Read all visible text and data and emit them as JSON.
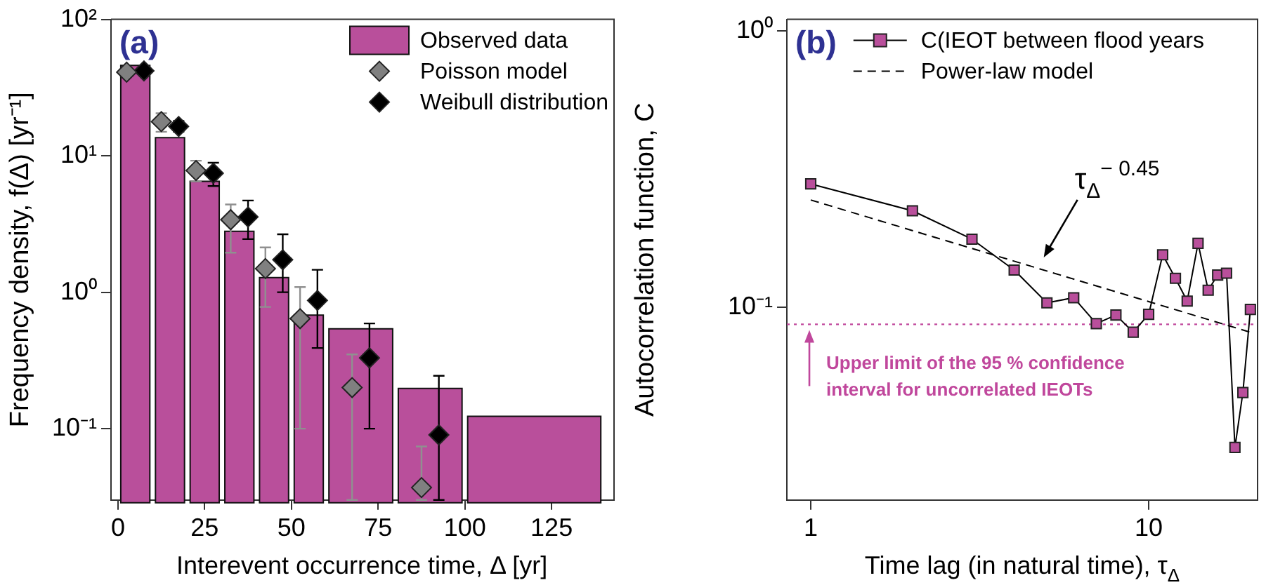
{
  "chart_data": [
    {
      "type": "histogram",
      "title": "(a)",
      "xlabel": "Interevent occurrence time, Δ [yr]",
      "ylabel": "Frequency density, f(Δ) [yr⁻¹]",
      "log": "y",
      "grid": false,
      "legend": "top right",
      "xlim": [
        -2,
        143
      ],
      "xticks": [
        0,
        25,
        50,
        75,
        100,
        125
      ],
      "ylim": [
        0.03,
        100
      ],
      "yticks": [
        {
          "value": 0.1,
          "label": "10⁻¹"
        },
        {
          "value": 1,
          "label": "10⁰"
        },
        {
          "value": 10,
          "label": "10¹"
        },
        {
          "value": 100,
          "label": "10²"
        }
      ],
      "series": [
        {
          "name": "Observed data",
          "color": "#b94f9b",
          "bins": [
            0,
            10,
            20,
            30,
            40,
            50,
            60,
            80,
            100,
            140
          ],
          "values": [
            46,
            13.6,
            6.5,
            2.8,
            1.28,
            0.68,
            0.54,
            0.197,
            0.123
          ]
        },
        {
          "name": "Poisson model",
          "type": "scatter",
          "marker": "diamond",
          "color": "#808080",
          "x": [
            2.5,
            12.5,
            22.5,
            32.5,
            42.5,
            52.5,
            67.5,
            87.5
          ],
          "values": [
            41,
            17.8,
            7.8,
            3.4,
            1.49,
            0.64,
            0.2,
            0.037
          ],
          "errors": [
            null,
            [
              15,
              20.5
            ],
            [
              6.5,
              9.2
            ],
            [
              1.95,
              4.4
            ],
            [
              0.78,
              2.13
            ],
            [
              0.1,
              1.09
            ],
            [
              0.03,
              0.35
            ],
            [
              0.03,
              0.074
            ]
          ]
        },
        {
          "name": "Weibull distribution",
          "type": "scatter",
          "marker": "diamond",
          "color": "#000000",
          "x": [
            7.5,
            17.5,
            27.5,
            37.5,
            47.5,
            57.5,
            72.5,
            92.5
          ],
          "values": [
            41.9,
            16.4,
            7.45,
            3.56,
            1.73,
            0.87,
            0.33,
            0.09
          ],
          "errors": [
            null,
            [
              15,
              18
            ],
            [
              6,
              8.9
            ],
            [
              2.45,
              4.7
            ],
            [
              1,
              2.66
            ],
            [
              0.39,
              1.46
            ],
            [
              0.1,
              0.59
            ],
            [
              0.03,
              0.244
            ]
          ]
        }
      ]
    },
    {
      "type": "line",
      "title": "(b)",
      "xlabel": "Time lag (in natural time), τ$_{Δ}$",
      "ylabel": "Autocorrelation function, C",
      "log": "xy",
      "grid": false,
      "legend": "top left",
      "xlim": [
        0.85,
        21
      ],
      "xticks": [
        1,
        10
      ],
      "ylim": [
        0.02,
        1.1
      ],
      "yticks": [
        {
          "value": 0.1,
          "label": "10⁻¹"
        },
        {
          "value": 1,
          "label": "10⁰"
        }
      ],
      "series": [
        {
          "name": "C(IEOT between flood years",
          "marker": "square",
          "line_style": "solid",
          "color": "#b94f9b",
          "x": [
            1,
            2,
            3,
            4,
            5,
            6,
            7,
            8,
            9,
            10,
            11,
            12,
            13,
            14,
            15,
            16,
            17,
            18,
            19,
            20
          ],
          "values": [
            0.279,
            0.223,
            0.176,
            0.136,
            0.1035,
            0.108,
            0.087,
            0.0935,
            0.081,
            0.094,
            0.1545,
            0.127,
            0.105,
            0.17,
            0.115,
            0.1305,
            0.1325,
            0.031,
            0.049,
            0.098
          ]
        },
        {
          "name": "Power-law model",
          "marker": "none",
          "line_style": "dashed",
          "color": "#000000",
          "x": [
            1,
            20
          ],
          "values": [
            0.244,
            0.081
          ]
        }
      ],
      "ref_lines": [
        {
          "axis": "y",
          "value": 0.0865,
          "label": "Upper limit of the 95 % confidence interval for uncorrelated IEOTs",
          "color": "#c0479c",
          "line_style": "dotted"
        }
      ],
      "annotations": [
        {
          "text": "τ$_{Δ}$$^{− 0.45}$",
          "x": 4.8,
          "y": 0.146
        }
      ]
    }
  ]
}
